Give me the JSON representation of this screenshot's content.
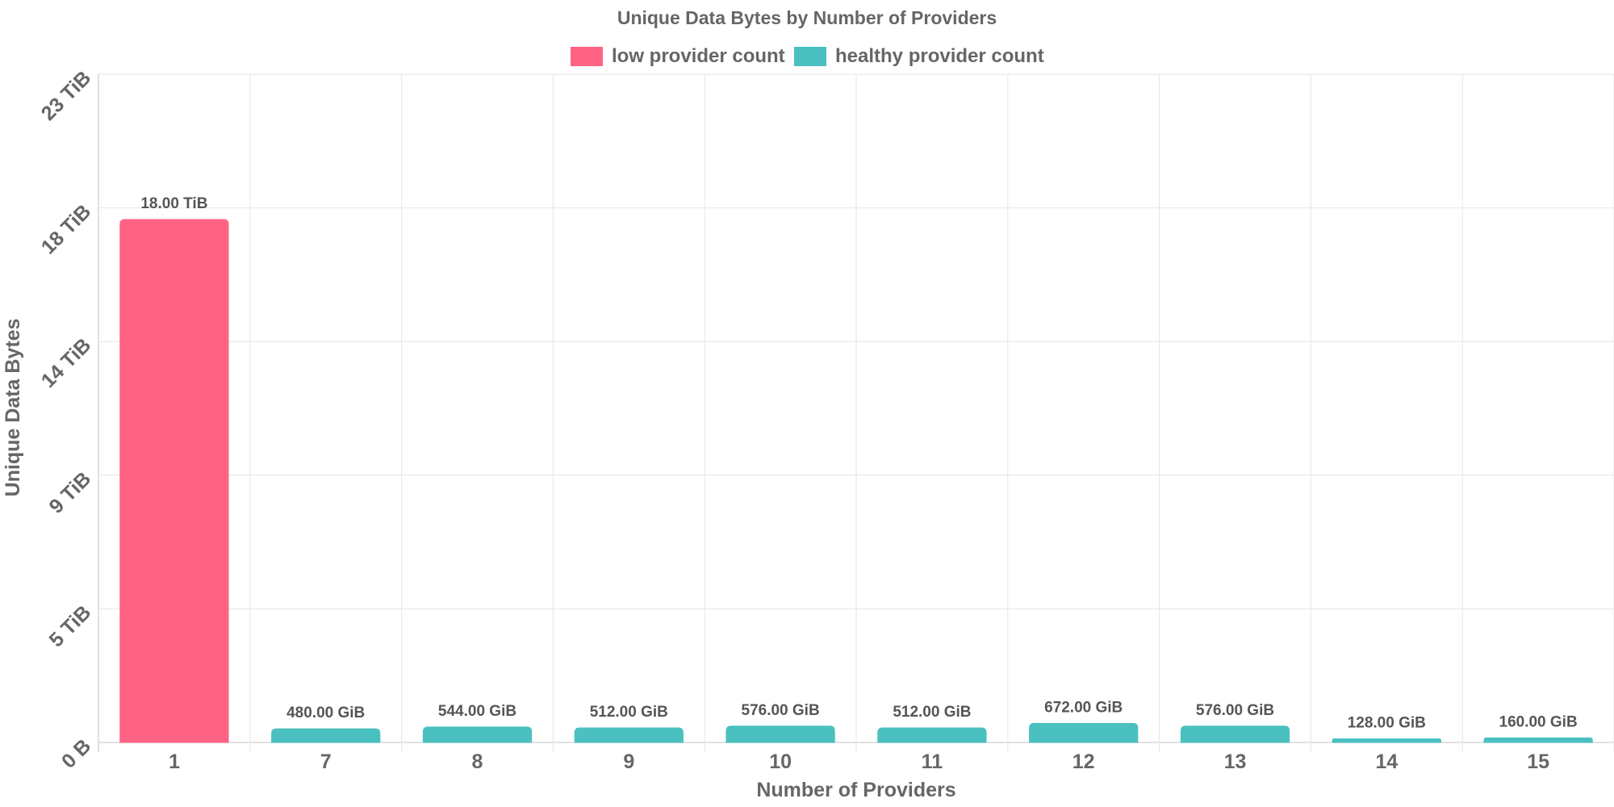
{
  "chart_data": {
    "type": "bar",
    "title": "Unique Data Bytes by Number of Providers",
    "xlabel": "Number of Providers",
    "ylabel": "Unique Data Bytes",
    "ylim": [
      0,
      23
    ],
    "unit": "TiB",
    "y_ticks": [
      {
        "value": 0,
        "label": "0 B"
      },
      {
        "value": 4.6,
        "label": "5 TiB"
      },
      {
        "value": 9.2,
        "label": "9 TiB"
      },
      {
        "value": 13.8,
        "label": "14 TiB"
      },
      {
        "value": 18.4,
        "label": "18 TiB"
      },
      {
        "value": 23,
        "label": "23 TiB"
      }
    ],
    "categories": [
      "1",
      "7",
      "8",
      "9",
      "10",
      "11",
      "12",
      "13",
      "14",
      "15"
    ],
    "values": [
      18.0,
      0.46875,
      0.53125,
      0.5,
      0.5625,
      0.5,
      0.65625,
      0.5625,
      0.125,
      0.15625
    ],
    "value_labels": [
      "18.00 TiB",
      "480.00 GiB",
      "544.00 GiB",
      "512.00 GiB",
      "576.00 GiB",
      "512.00 GiB",
      "672.00 GiB",
      "576.00 GiB",
      "128.00 GiB",
      "160.00 GiB"
    ],
    "bar_series": [
      "low",
      "healthy",
      "healthy",
      "healthy",
      "healthy",
      "healthy",
      "healthy",
      "healthy",
      "healthy",
      "healthy"
    ],
    "legend": [
      {
        "key": "low",
        "label": "low provider count",
        "color": "#ff6384"
      },
      {
        "key": "healthy",
        "label": "healthy provider count",
        "color": "#4bc0c0"
      }
    ],
    "legend_position": "top",
    "grid": true
  }
}
